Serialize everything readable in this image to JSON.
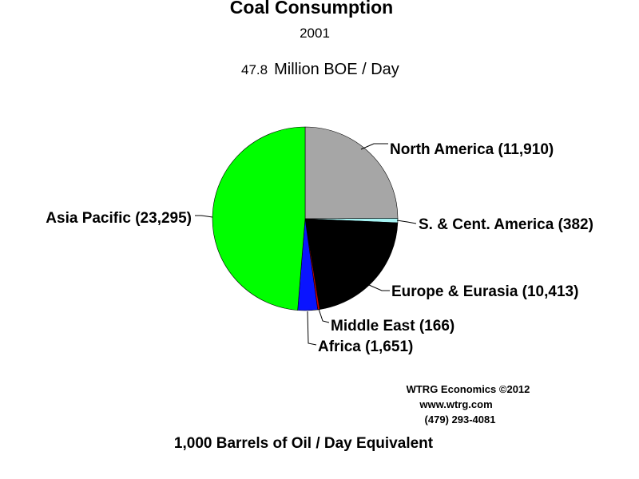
{
  "chart_data": {
    "type": "pie",
    "title": "Coal Consumption",
    "subtitle": "2001",
    "total": {
      "value": "47.8",
      "unit": "Million BOE / Day"
    },
    "footnote": "1,000 Barrels of Oil / Day Equivalent",
    "start_angle_deg": 0,
    "direction": "clockwise",
    "slices": [
      {
        "label": "North America",
        "value": 11910,
        "label_text": "North America (11,910)",
        "color": "#a6a6a6"
      },
      {
        "label": "S. & Cent. America",
        "value": 382,
        "label_text": "S. & Cent. America (382)",
        "color": "#a6f3f3"
      },
      {
        "label": "Europe & Eurasia",
        "value": 10413,
        "label_text": "Europe & Eurasia (10,413)",
        "color": "#000000"
      },
      {
        "label": "Middle East",
        "value": 166,
        "label_text": "Middle East (166)",
        "color": "#cc0000"
      },
      {
        "label": "Africa",
        "value": 1651,
        "label_text": "Africa (1,651)",
        "color": "#0a14ff"
      },
      {
        "label": "Asia Pacific",
        "value": 23295,
        "label_text": "Asia Pacific (23,295)",
        "color": "#00ff00"
      }
    ]
  },
  "credits": {
    "line1": "WTRG Economics  ©2012",
    "line2": "www.wtrg.com",
    "line3": "(479) 293-4081"
  }
}
